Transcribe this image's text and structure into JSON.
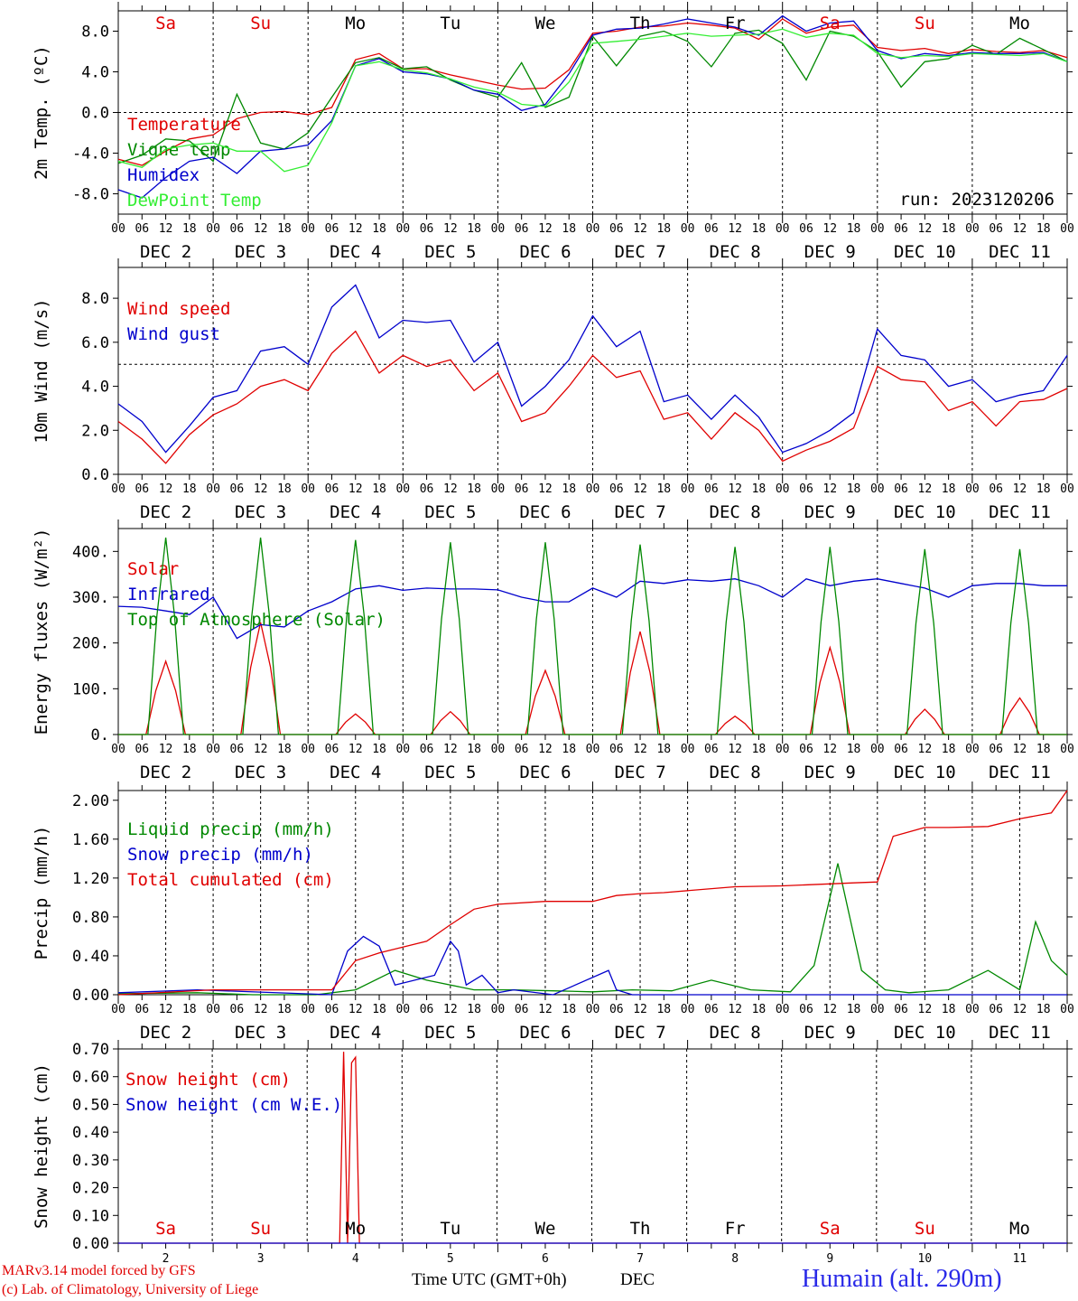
{
  "chart_data": [
    {
      "type": "line",
      "ylabel": "2m Temp. (ºC)",
      "ylim": [
        -10,
        10
      ],
      "yticks": [
        8,
        4,
        0,
        -4,
        -8
      ],
      "ytick_labels": [
        "8.0",
        "4.0",
        "0.0",
        "-4.0",
        "-8.0"
      ],
      "ref_line": 0,
      "x_unit": "hours since DEC 2 00 UTC",
      "day_names": [
        "Sa",
        "Su",
        "Mo",
        "Tu",
        "We",
        "Th",
        "Fr",
        "Sa",
        "Su",
        "Mo"
      ],
      "annotation": "run: 2023120206",
      "series": [
        {
          "name": "Temperature",
          "color": "#e00000",
          "x": [
            0,
            6,
            12,
            18,
            24,
            30,
            36,
            42,
            48,
            54,
            60,
            66,
            72,
            78,
            84,
            90,
            96,
            102,
            108,
            114,
            120,
            126,
            132,
            138,
            144,
            150,
            156,
            162,
            168,
            174,
            180,
            186,
            192,
            198,
            204,
            210,
            216,
            222,
            228,
            234,
            240
          ],
          "y": [
            -4.6,
            -5.2,
            -3.8,
            -2.6,
            -2.2,
            -0.6,
            0.0,
            0.1,
            -0.2,
            0.5,
            5.2,
            5.8,
            4.3,
            4.3,
            3.7,
            3.2,
            2.7,
            2.3,
            2.4,
            4.2,
            7.8,
            8.0,
            8.4,
            8.5,
            8.8,
            8.6,
            8.3,
            7.2,
            9.2,
            7.8,
            8.4,
            8.6,
            6.4,
            6.1,
            6.3,
            5.8,
            6.2,
            6.0,
            5.9,
            6.1,
            5.4
          ]
        },
        {
          "name": "Vigne temp",
          "color": "#008800",
          "x": [
            0,
            6,
            12,
            18,
            24,
            30,
            36,
            42,
            48,
            54,
            60,
            66,
            72,
            78,
            84,
            90,
            96,
            102,
            108,
            114,
            120,
            126,
            132,
            138,
            144,
            150,
            156,
            162,
            168,
            174,
            180,
            186,
            192,
            198,
            204,
            210,
            216,
            222,
            228,
            234,
            240
          ],
          "y": [
            -5.0,
            -4.2,
            -2.6,
            -2.8,
            -4.8,
            1.8,
            -3.0,
            -3.6,
            -2.0,
            1.5,
            4.9,
            5.4,
            4.3,
            4.5,
            3.2,
            2.2,
            1.5,
            4.9,
            0.5,
            1.5,
            7.5,
            4.6,
            7.5,
            8.0,
            7.0,
            4.5,
            7.8,
            8.1,
            6.8,
            3.2,
            8.0,
            7.5,
            6.0,
            2.5,
            5.0,
            5.3,
            6.6,
            5.7,
            7.3,
            6.2,
            5.0
          ]
        },
        {
          "name": "Humidex",
          "color": "#0000cc",
          "x": [
            0,
            6,
            12,
            18,
            24,
            30,
            36,
            42,
            48,
            54,
            60,
            66,
            72,
            78,
            84,
            90,
            96,
            102,
            108,
            114,
            120,
            126,
            132,
            138,
            144,
            150,
            156,
            162,
            168,
            174,
            180,
            186,
            192,
            198,
            204,
            210,
            216,
            222,
            228,
            234,
            240
          ],
          "y": [
            -7.6,
            -8.4,
            -6.4,
            -4.8,
            -4.4,
            -6.0,
            -3.8,
            -3.6,
            -3.2,
            -0.8,
            4.6,
            5.3,
            4.0,
            3.8,
            3.3,
            2.2,
            1.8,
            0.2,
            0.8,
            3.8,
            7.6,
            8.2,
            8.3,
            8.7,
            9.2,
            8.8,
            8.4,
            7.6,
            9.5,
            8.0,
            8.8,
            9.0,
            6.1,
            5.3,
            5.8,
            5.6,
            5.9,
            5.8,
            5.8,
            5.9,
            5.0
          ]
        },
        {
          "name": "DewPoint Temp",
          "color": "#33ee33",
          "x": [
            0,
            6,
            12,
            18,
            24,
            30,
            36,
            42,
            48,
            54,
            60,
            66,
            72,
            78,
            84,
            90,
            96,
            102,
            108,
            114,
            120,
            126,
            132,
            138,
            144,
            150,
            156,
            162,
            168,
            174,
            180,
            186,
            192,
            198,
            204,
            210,
            216,
            222,
            228,
            234,
            240
          ],
          "y": [
            -4.8,
            -5.4,
            -3.6,
            -3.2,
            -3.0,
            -3.8,
            -3.8,
            -5.8,
            -5.2,
            -1.0,
            4.6,
            5.0,
            4.2,
            3.9,
            3.3,
            2.5,
            2.0,
            0.8,
            0.6,
            3.0,
            6.8,
            7.0,
            7.2,
            7.5,
            7.8,
            7.5,
            7.6,
            7.7,
            8.2,
            7.4,
            7.8,
            7.6,
            5.8,
            5.4,
            5.6,
            5.5,
            5.8,
            5.7,
            5.6,
            5.8,
            5.0
          ]
        }
      ]
    },
    {
      "type": "line",
      "ylabel": "10m Wind (m/s)",
      "ylim": [
        0,
        9.4
      ],
      "yticks": [
        8,
        6,
        4,
        2,
        0
      ],
      "ytick_labels": [
        "8.0",
        "6.0",
        "4.0",
        "2.0",
        "0.0"
      ],
      "ref_line": 5,
      "series": [
        {
          "name": "Wind speed",
          "color": "#e00000",
          "x": [
            0,
            6,
            12,
            18,
            24,
            30,
            36,
            42,
            48,
            54,
            60,
            66,
            72,
            78,
            84,
            90,
            96,
            102,
            108,
            114,
            120,
            126,
            132,
            138,
            144,
            150,
            156,
            162,
            168,
            174,
            180,
            186,
            192,
            198,
            204,
            210,
            216,
            222,
            228,
            234,
            240
          ],
          "y": [
            2.4,
            1.6,
            0.5,
            1.8,
            2.7,
            3.2,
            4.0,
            4.3,
            3.8,
            5.5,
            6.5,
            4.6,
            5.4,
            4.9,
            5.2,
            3.8,
            4.6,
            2.4,
            2.8,
            4.0,
            5.4,
            4.4,
            4.7,
            2.5,
            2.8,
            1.6,
            2.8,
            2.0,
            0.6,
            1.1,
            1.5,
            2.1,
            4.9,
            4.3,
            4.2,
            2.9,
            3.3,
            2.2,
            3.3,
            3.4,
            3.9
          ]
        },
        {
          "name": "Wind gust",
          "color": "#0000cc",
          "x": [
            0,
            6,
            12,
            18,
            24,
            30,
            36,
            42,
            48,
            54,
            60,
            66,
            72,
            78,
            84,
            90,
            96,
            102,
            108,
            114,
            120,
            126,
            132,
            138,
            144,
            150,
            156,
            162,
            168,
            174,
            180,
            186,
            192,
            198,
            204,
            210,
            216,
            222,
            228,
            234,
            240
          ],
          "y": [
            3.2,
            2.4,
            1.0,
            2.2,
            3.5,
            3.8,
            5.6,
            5.8,
            5.0,
            7.6,
            8.6,
            6.2,
            7.0,
            6.9,
            7.0,
            5.1,
            6.0,
            3.1,
            4.0,
            5.2,
            7.2,
            5.8,
            6.5,
            3.3,
            3.6,
            2.5,
            3.6,
            2.6,
            1.0,
            1.4,
            2.0,
            2.8,
            6.6,
            5.4,
            5.2,
            4.0,
            4.3,
            3.3,
            3.6,
            3.8,
            5.4
          ]
        }
      ]
    },
    {
      "type": "line",
      "ylabel": "Energy fluxes (W/m²)",
      "ylim": [
        0,
        450
      ],
      "yticks": [
        400,
        300,
        200,
        100,
        0
      ],
      "ytick_labels": [
        "400.",
        "300.",
        "200.",
        "100.",
        "0."
      ],
      "series": [
        {
          "name": "Solar",
          "color": "#e00000",
          "daily_peak_hour": 12,
          "daily_peaks": [
            160,
            245,
            45,
            50,
            140,
            225,
            40,
            190,
            55,
            80
          ]
        },
        {
          "name": "Infrared",
          "color": "#0000cc",
          "x": [
            0,
            6,
            12,
            18,
            24,
            30,
            36,
            42,
            48,
            54,
            60,
            66,
            72,
            78,
            84,
            90,
            96,
            102,
            108,
            114,
            120,
            126,
            132,
            138,
            144,
            150,
            156,
            162,
            168,
            174,
            180,
            186,
            192,
            198,
            204,
            210,
            216,
            222,
            228,
            234,
            240
          ],
          "y": [
            280,
            278,
            270,
            262,
            300,
            210,
            240,
            235,
            270,
            290,
            318,
            325,
            315,
            320,
            318,
            318,
            316,
            300,
            290,
            290,
            320,
            300,
            335,
            330,
            338,
            335,
            340,
            325,
            300,
            340,
            325,
            335,
            340,
            330,
            320,
            300,
            325,
            330,
            330,
            325,
            325
          ]
        },
        {
          "name": "Top of Atmosphere (Solar)",
          "color": "#008800",
          "daily_peak_hour": 12,
          "half_width_hours": 4.5,
          "daily_peaks": [
            430,
            430,
            425,
            420,
            420,
            415,
            410,
            410,
            405,
            405
          ]
        }
      ]
    },
    {
      "type": "line",
      "ylabel": "Precip (mm/h)",
      "ylim": [
        0,
        2.1
      ],
      "yticks": [
        2.0,
        1.6,
        1.2,
        0.8,
        0.4,
        0.0
      ],
      "ytick_labels": [
        "2.00",
        "1.60",
        "1.20",
        "0.80",
        "0.40",
        "0.00"
      ],
      "series": [
        {
          "name": "Liquid precip (mm/h)",
          "color": "#008800",
          "x": [
            0,
            20,
            34,
            50,
            60,
            70,
            78,
            90,
            100,
            110,
            120,
            130,
            140,
            150,
            160,
            170,
            176,
            182,
            188,
            194,
            200,
            210,
            220,
            228,
            232,
            236,
            240
          ],
          "y": [
            0.01,
            0.02,
            0.0,
            0.0,
            0.05,
            0.25,
            0.15,
            0.05,
            0.05,
            0.04,
            0.03,
            0.05,
            0.04,
            0.15,
            0.05,
            0.03,
            0.3,
            1.35,
            0.25,
            0.05,
            0.02,
            0.05,
            0.25,
            0.05,
            0.75,
            0.35,
            0.2
          ]
        },
        {
          "name": "Snow precip (mm/h)",
          "color": "#0000cc",
          "x": [
            0,
            20,
            54,
            58,
            62,
            66,
            70,
            80,
            84,
            86,
            88,
            92,
            96,
            100,
            110,
            124,
            126,
            130,
            140,
            160,
            200,
            240
          ],
          "y": [
            0.02,
            0.05,
            0.0,
            0.45,
            0.6,
            0.5,
            0.1,
            0.2,
            0.55,
            0.45,
            0.1,
            0.2,
            0.02,
            0.05,
            0.0,
            0.25,
            0.05,
            0.0,
            0.0,
            0.0,
            0.0,
            0.0
          ]
        },
        {
          "name": "Total cumulated (cm)",
          "color": "#e00000",
          "x": [
            0,
            24,
            54,
            60,
            66,
            72,
            78,
            84,
            90,
            96,
            108,
            120,
            126,
            132,
            138,
            144,
            156,
            168,
            180,
            186,
            192,
            196,
            204,
            210,
            220,
            228,
            236,
            240
          ],
          "y": [
            0.0,
            0.05,
            0.05,
            0.35,
            0.43,
            0.49,
            0.55,
            0.72,
            0.88,
            0.93,
            0.96,
            0.96,
            1.02,
            1.04,
            1.05,
            1.07,
            1.11,
            1.12,
            1.14,
            1.15,
            1.16,
            1.63,
            1.72,
            1.72,
            1.73,
            1.81,
            1.87,
            2.1
          ]
        }
      ]
    },
    {
      "type": "line",
      "ylabel": "Snow height (cm)",
      "ylim": [
        0,
        0.7
      ],
      "yticks": [
        0.7,
        0.6,
        0.5,
        0.4,
        0.3,
        0.2,
        0.1,
        0.0
      ],
      "ytick_labels": [
        "0.70",
        "0.60",
        "0.50",
        "0.40",
        "0.30",
        "0.20",
        "0.10",
        "0.00"
      ],
      "series": [
        {
          "name": "Snow height (cm)",
          "color": "#e00000",
          "x": [
            0,
            56,
            57,
            58,
            59,
            60,
            61,
            62,
            63,
            240
          ],
          "y": [
            0,
            0,
            0.69,
            0.0,
            0.65,
            0.67,
            0.0,
            0,
            0,
            0
          ]
        },
        {
          "name": "Snow height (cm W.E.)",
          "color": "#0000cc",
          "x": [
            0,
            240
          ],
          "y": [
            0,
            0
          ]
        }
      ]
    }
  ],
  "hour_labels": [
    "00",
    "06",
    "12",
    "18"
  ],
  "date_labels": [
    "DEC  2",
    "DEC  3",
    "DEC  4",
    "DEC  5",
    "DEC  6",
    "DEC  7",
    "DEC  8",
    "DEC  9",
    "DEC 10",
    "DEC 11"
  ],
  "bottom_day_numbers": [
    "2",
    "3",
    "4",
    "5",
    "6",
    "7",
    "8",
    "9",
    "10",
    "11"
  ],
  "weekend_color": "#e00000",
  "weekday_color": "#000000",
  "weekend_days": [
    0,
    1,
    7,
    8
  ],
  "footer": {
    "model": "MARv3.14 model forced by GFS",
    "credit": "(c) Lab. of Climatology, University of Liege",
    "xlabel": "Time UTC (GMT+0h)",
    "month": "DEC",
    "station": "Humain (alt. 290m)"
  }
}
